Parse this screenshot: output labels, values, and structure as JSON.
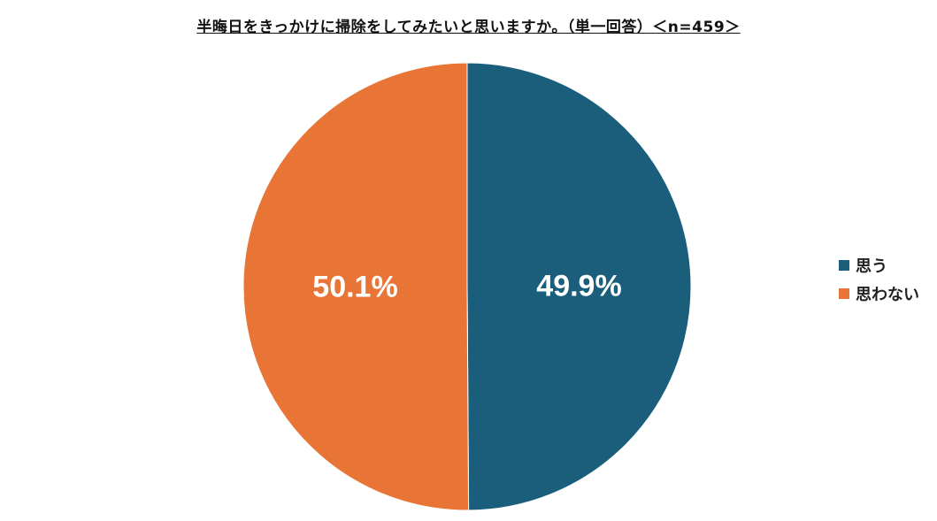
{
  "chart_data": {
    "type": "pie",
    "title": "半晦日をきっかけに掃除をしてみたいと思いますか。（単一回答）＜n=459＞",
    "slices": [
      {
        "name": "思う",
        "value": 49.9,
        "label": "49.9%",
        "color": "#1a5e7c"
      },
      {
        "name": "思わない",
        "value": 50.1,
        "label": "50.1%",
        "color": "#e87535"
      }
    ],
    "start_angle_deg": 0,
    "direction": "clockwise",
    "legend_placement": "right"
  }
}
